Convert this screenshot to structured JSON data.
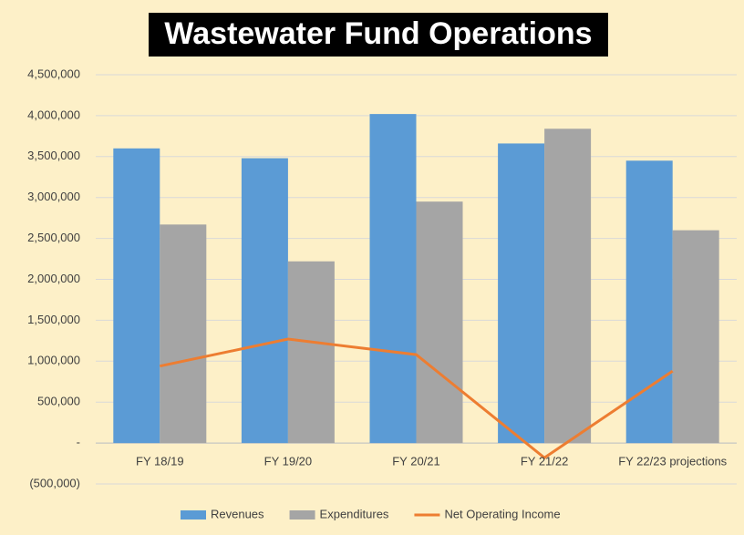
{
  "chart_data": {
    "type": "bar",
    "title": "Wastewater Fund Operations",
    "categories": [
      "FY 18/19",
      "FY 19/20",
      "FY 20/21",
      "FY 21/22",
      "FY 22/23 projections"
    ],
    "series": [
      {
        "name": "Revenues",
        "type": "bar",
        "color": "#5b9bd5",
        "values": [
          3600000,
          3480000,
          4020000,
          3660000,
          3450000
        ]
      },
      {
        "name": "Expenditures",
        "type": "bar",
        "color": "#a5a5a5",
        "values": [
          2670000,
          2220000,
          2950000,
          3840000,
          2600000
        ]
      },
      {
        "name": "Net Operating Income",
        "type": "line",
        "color": "#ed7d31",
        "values": [
          940000,
          1270000,
          1080000,
          -180000,
          880000
        ]
      }
    ],
    "ylim": [
      -500000,
      4500000
    ],
    "yticks": [
      {
        "value": -500000,
        "label": "(500,000)"
      },
      {
        "value": 0,
        "label": "-"
      },
      {
        "value": 500000,
        "label": "500,000"
      },
      {
        "value": 1000000,
        "label": "1,000,000"
      },
      {
        "value": 1500000,
        "label": "1,500,000"
      },
      {
        "value": 2000000,
        "label": "2,000,000"
      },
      {
        "value": 2500000,
        "label": "2,500,000"
      },
      {
        "value": 3000000,
        "label": "3,000,000"
      },
      {
        "value": 3500000,
        "label": "3,500,000"
      },
      {
        "value": 4000000,
        "label": "4,000,000"
      },
      {
        "value": 4500000,
        "label": "4,500,000"
      }
    ],
    "grid": true,
    "legend": "bottom"
  }
}
